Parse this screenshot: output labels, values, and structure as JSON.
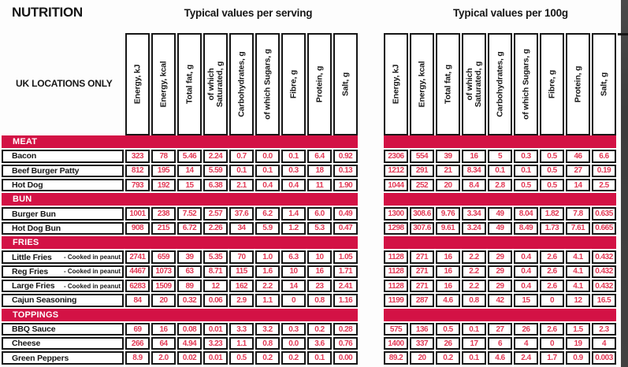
{
  "page": {
    "title": "NUTRITION",
    "subtitle_serving": "Typical values per serving",
    "subtitle_per100g": "Typical values per 100g",
    "row_header": "UK LOCATIONS ONLY"
  },
  "columns": [
    "Energy, kJ",
    "Energy, kcal",
    "Total fat, g",
    "of which\nSaturated, g",
    "Carbohydrates, g",
    "of which Sugars, g",
    "Fibre, g",
    "Protein, g",
    "Salt, g"
  ],
  "sections": [
    {
      "name": "MEAT",
      "rows": [
        {
          "label": "Bacon",
          "note": "",
          "serving": [
            "323",
            "78",
            "5.46",
            "2.24",
            "0.7",
            "0.0",
            "0.1",
            "6.4",
            "0.92"
          ],
          "per_100g": [
            "2306",
            "554",
            "39",
            "16",
            "5",
            "0.3",
            "0.5",
            "46",
            "6.6"
          ]
        },
        {
          "label": "Beef Burger Patty",
          "note": "",
          "serving": [
            "812",
            "195",
            "14",
            "5.59",
            "0.1",
            "0.1",
            "0.3",
            "18",
            "0.13"
          ],
          "per_100g": [
            "1212",
            "291",
            "21",
            "8.34",
            "0.1",
            "0.1",
            "0.5",
            "27",
            "0.19"
          ]
        },
        {
          "label": "Hot Dog",
          "note": "",
          "serving": [
            "793",
            "192",
            "15",
            "6.38",
            "2.1",
            "0.4",
            "0.4",
            "11",
            "1.90"
          ],
          "per_100g": [
            "1044",
            "252",
            "20",
            "8.4",
            "2.8",
            "0.5",
            "0.5",
            "14",
            "2.5"
          ]
        }
      ]
    },
    {
      "name": "BUN",
      "rows": [
        {
          "label": "Burger Bun",
          "note": "",
          "serving": [
            "1001",
            "238",
            "7.52",
            "2.57",
            "37.6",
            "6.2",
            "1.4",
            "6.0",
            "0.49"
          ],
          "per_100g": [
            "1300",
            "308.6",
            "9.76",
            "3.34",
            "49",
            "8.04",
            "1.82",
            "7.8",
            "0.635"
          ]
        },
        {
          "label": "Hot Dog Bun",
          "note": "",
          "serving": [
            "908",
            "215",
            "6.72",
            "2.26",
            "34",
            "5.9",
            "1.2",
            "5.3",
            "0.47"
          ],
          "per_100g": [
            "1298",
            "307.6",
            "9.61",
            "3.24",
            "49",
            "8.49",
            "1.73",
            "7.61",
            "0.665"
          ]
        }
      ]
    },
    {
      "name": "FRIES",
      "rows": [
        {
          "label": "Little Fries",
          "note": "- Cooked in peanut oil",
          "serving": [
            "2741",
            "659",
            "39",
            "5.35",
            "70",
            "1.0",
            "6.3",
            "10",
            "1.05"
          ],
          "per_100g": [
            "1128",
            "271",
            "16",
            "2.2",
            "29",
            "0.4",
            "2.6",
            "4.1",
            "0.432"
          ]
        },
        {
          "label": "Reg Fries",
          "note": "- Cooked in peanut oil",
          "serving": [
            "4467",
            "1073",
            "63",
            "8.71",
            "115",
            "1.6",
            "10",
            "16",
            "1.71"
          ],
          "per_100g": [
            "1128",
            "271",
            "16",
            "2.2",
            "29",
            "0.4",
            "2.6",
            "4.1",
            "0.432"
          ]
        },
        {
          "label": "Large Fries",
          "note": "- Cooked in peanut oil",
          "serving": [
            "6283",
            "1509",
            "89",
            "12",
            "162",
            "2.2",
            "14",
            "23",
            "2.41"
          ],
          "per_100g": [
            "1128",
            "271",
            "16",
            "2.2",
            "29",
            "0.4",
            "2.6",
            "4.1",
            "0.432"
          ]
        },
        {
          "label": "Cajun Seasoning",
          "note": "",
          "serving": [
            "84",
            "20",
            "0.32",
            "0.06",
            "2.9",
            "1.1",
            "0",
            "0.8",
            "1.16"
          ],
          "per_100g": [
            "1199",
            "287",
            "4.6",
            "0.8",
            "42",
            "15",
            "0",
            "12",
            "16.5"
          ]
        }
      ]
    },
    {
      "name": "TOPPINGS",
      "rows": [
        {
          "label": "BBQ Sauce",
          "note": "",
          "serving": [
            "69",
            "16",
            "0.08",
            "0.01",
            "3.3",
            "3.2",
            "0.3",
            "0.2",
            "0.28"
          ],
          "per_100g": [
            "575",
            "136",
            "0.5",
            "0.1",
            "27",
            "26",
            "2.6",
            "1.5",
            "2.3"
          ]
        },
        {
          "label": "Cheese",
          "note": "",
          "serving": [
            "266",
            "64",
            "4.94",
            "3.23",
            "1.1",
            "0.8",
            "0.0",
            "3.6",
            "0.76"
          ],
          "per_100g": [
            "1400",
            "337",
            "26",
            "17",
            "6",
            "4",
            "0",
            "19",
            "4"
          ]
        },
        {
          "label": "Green Peppers",
          "note": "",
          "serving": [
            "8.9",
            "2.0",
            "0.02",
            "0.01",
            "0.5",
            "0.2",
            "0.2",
            "0.1",
            "0.00"
          ],
          "per_100g": [
            "89.2",
            "20",
            "0.2",
            "0.1",
            "4.6",
            "2.4",
            "1.7",
            "0.9",
            "0.003"
          ]
        }
      ]
    }
  ],
  "colors": {
    "accent_red": "#d31245",
    "value_text_red": "#e23a56",
    "border_black": "#161616",
    "edge_strip_gray": "#414141"
  }
}
